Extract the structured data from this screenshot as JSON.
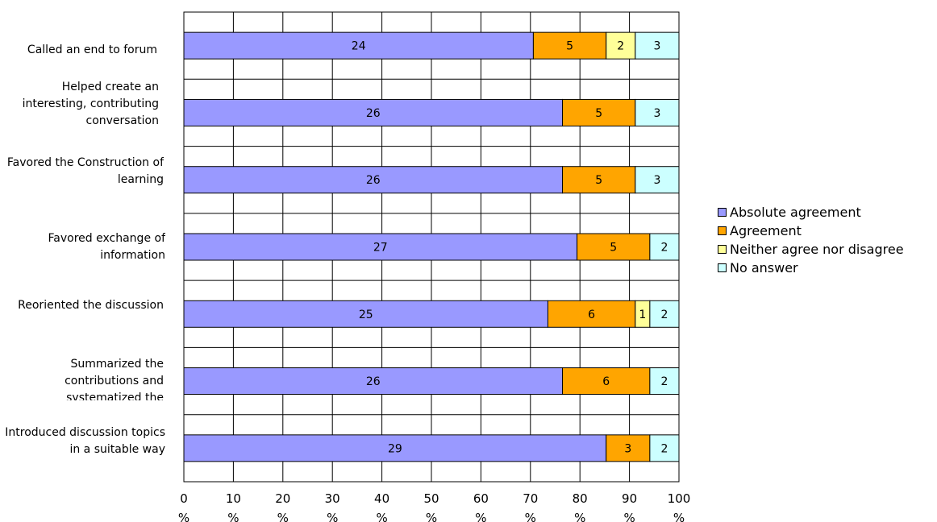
{
  "colors": {
    "absolute_agreement": "#9999ff",
    "agreement": "#ffa500",
    "neither": "#ffff99",
    "no_answer": "#ccffff",
    "grid": "#000000"
  },
  "chart_data": {
    "type": "bar",
    "orientation": "horizontal",
    "stacked": "percent",
    "categories": [
      "Called an end to forum",
      "Helped create an interesting, contributing conversation",
      "Favored the Construction of learning",
      "Favored exchange of information",
      "Reoriented the discussion",
      "Summarized the contributions and systematized the information",
      "Introduced discussion topics in a suitable way"
    ],
    "series": [
      {
        "name": "Absolute agreement",
        "color": "#9999ff",
        "values": [
          24,
          26,
          26,
          27,
          25,
          26,
          29
        ]
      },
      {
        "name": "Agreement",
        "color": "#ffa500",
        "values": [
          5,
          5,
          5,
          5,
          6,
          6,
          3
        ]
      },
      {
        "name": "Neither agree nor disagree",
        "color": "#ffff99",
        "values": [
          2,
          0,
          0,
          0,
          1,
          0,
          0
        ]
      },
      {
        "name": "No answer",
        "color": "#ccffff",
        "values": [
          3,
          3,
          3,
          2,
          2,
          2,
          2
        ]
      }
    ],
    "xlim": [
      0,
      100
    ],
    "x_ticks": [
      "0 %",
      "10 %",
      "20 %",
      "30 %",
      "40 %",
      "50 %",
      "60 %",
      "70 %",
      "80 %",
      "90 %",
      "100 %"
    ],
    "grid": true,
    "legend_position": "right"
  }
}
